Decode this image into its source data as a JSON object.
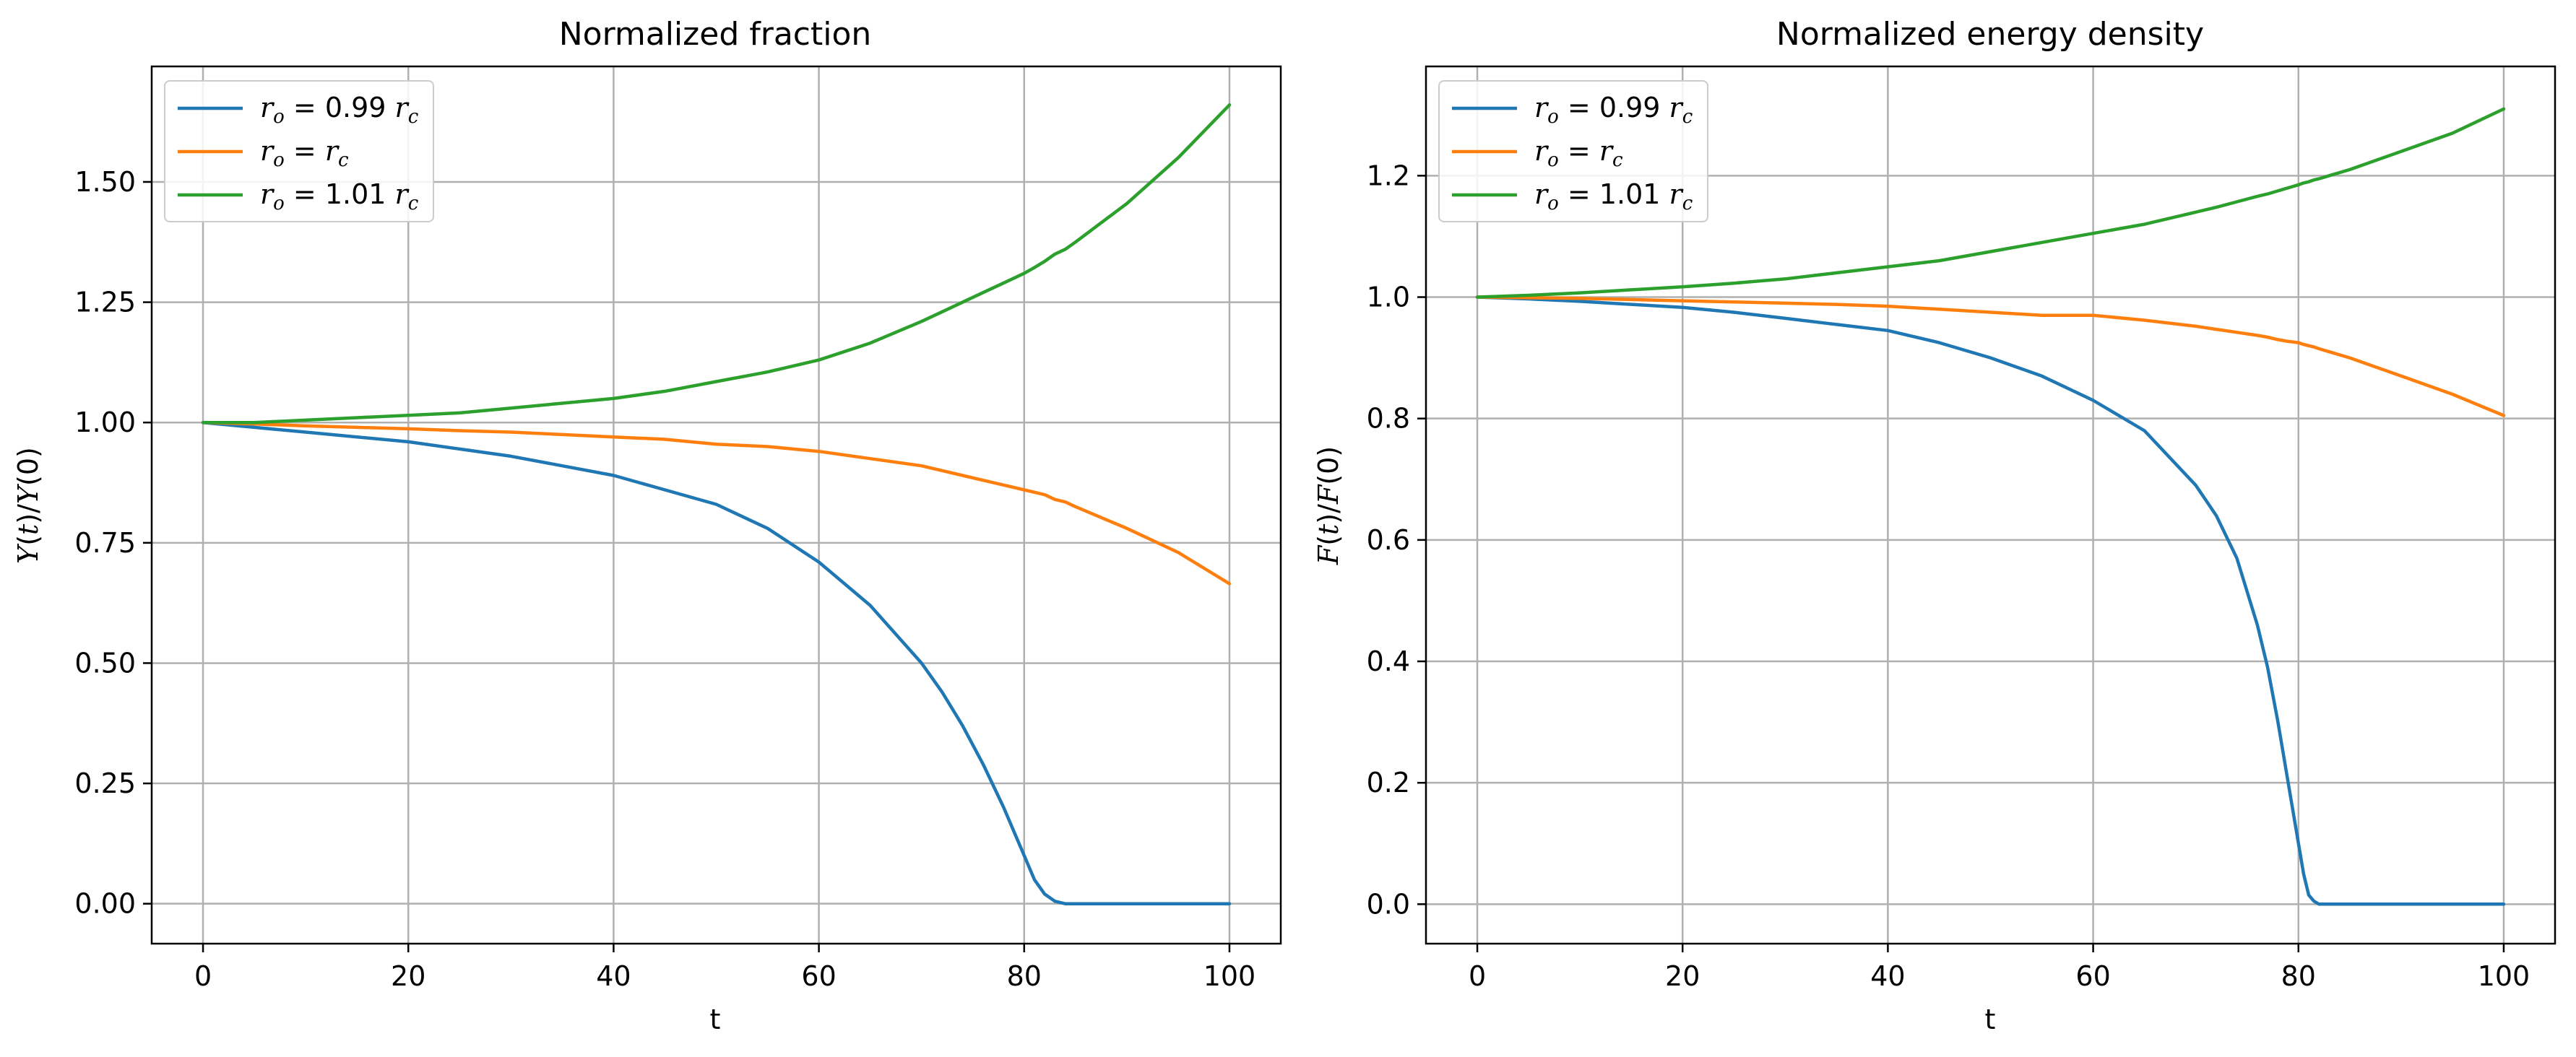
{
  "chart_data": [
    {
      "type": "line",
      "title": "Normalized fraction",
      "xlabel": "t",
      "ylabel": "Y(t)/Y(0)",
      "xlim": [
        -5,
        105
      ],
      "ylim": [
        -0.083,
        1.74
      ],
      "xticks": [
        0,
        20,
        40,
        60,
        80,
        100
      ],
      "xtick_labels": [
        "0",
        "20",
        "40",
        "60",
        "80",
        "100"
      ],
      "yticks": [
        0,
        0.25,
        0.5,
        0.75,
        1.0,
        1.25,
        1.5
      ],
      "ytick_labels": [
        "0.00",
        "0.25",
        "0.50",
        "0.75",
        "1.00",
        "1.25",
        "1.50"
      ],
      "grid": true,
      "legend_position": "top-left",
      "x": [
        0,
        5,
        10,
        15,
        20,
        25,
        30,
        35,
        40,
        45,
        50,
        55,
        60,
        65,
        70,
        72,
        74,
        76,
        78,
        80,
        81,
        82,
        83,
        84,
        85,
        90,
        95,
        100
      ],
      "series": [
        {
          "name": "r_o = 0.99 r_c",
          "color": "#1f77b4",
          "values": [
            1.0,
            0.99,
            0.98,
            0.97,
            0.96,
            0.945,
            0.93,
            0.91,
            0.89,
            0.86,
            0.83,
            0.78,
            0.71,
            0.62,
            0.5,
            0.44,
            0.37,
            0.29,
            0.2,
            0.1,
            0.05,
            0.02,
            0.005,
            0.0,
            0.0,
            0.0,
            0.0,
            0.0
          ]
        },
        {
          "name": "r_o = r_c",
          "color": "#ff7f0e",
          "values": [
            1.0,
            0.997,
            0.993,
            0.99,
            0.987,
            0.983,
            0.98,
            0.975,
            0.97,
            0.965,
            0.955,
            0.95,
            0.94,
            0.925,
            0.91,
            0.9,
            0.89,
            0.88,
            0.87,
            0.86,
            0.855,
            0.85,
            0.84,
            0.835,
            0.825,
            0.78,
            0.73,
            0.665
          ]
        },
        {
          "name": "r_o = 1.01 r_c",
          "color": "#2ca02c",
          "values": [
            1.0,
            1.0,
            1.005,
            1.01,
            1.015,
            1.02,
            1.03,
            1.04,
            1.05,
            1.065,
            1.085,
            1.105,
            1.13,
            1.165,
            1.21,
            1.23,
            1.25,
            1.27,
            1.29,
            1.31,
            1.322,
            1.335,
            1.35,
            1.36,
            1.375,
            1.455,
            1.55,
            1.66
          ]
        }
      ]
    },
    {
      "type": "line",
      "title": "Normalized energy density",
      "xlabel": "t",
      "ylabel": "F(t)/F(0)",
      "xlim": [
        -5,
        105
      ],
      "ylim": [
        -0.065,
        1.38
      ],
      "xticks": [
        0,
        20,
        40,
        60,
        80,
        100
      ],
      "xtick_labels": [
        "0",
        "20",
        "40",
        "60",
        "80",
        "100"
      ],
      "yticks": [
        0,
        0.2,
        0.4,
        0.6,
        0.8,
        1.0,
        1.2
      ],
      "ytick_labels": [
        "0.0",
        "0.2",
        "0.4",
        "0.6",
        "0.8",
        "1.0",
        "1.2"
      ],
      "grid": true,
      "legend_position": "top-left",
      "x": [
        0,
        5,
        10,
        15,
        20,
        25,
        30,
        35,
        40,
        45,
        50,
        55,
        60,
        65,
        70,
        72,
        74,
        76,
        77,
        78,
        79,
        80,
        80.5,
        81,
        81.5,
        82,
        83,
        85,
        90,
        95,
        100
      ],
      "series": [
        {
          "name": "r_o = 0.99 r_c",
          "color": "#1f77b4",
          "values": [
            1.0,
            0.997,
            0.993,
            0.988,
            0.983,
            0.975,
            0.965,
            0.955,
            0.945,
            0.925,
            0.9,
            0.87,
            0.83,
            0.78,
            0.69,
            0.64,
            0.57,
            0.46,
            0.39,
            0.3,
            0.2,
            0.1,
            0.05,
            0.015,
            0.005,
            0.0,
            0.0,
            0.0,
            0.0,
            0.0,
            0.0
          ]
        },
        {
          "name": "r_o = r_c",
          "color": "#ff7f0e",
          "values": [
            1.0,
            0.999,
            0.998,
            0.996,
            0.994,
            0.992,
            0.99,
            0.988,
            0.985,
            0.98,
            0.975,
            0.97,
            0.97,
            0.962,
            0.952,
            0.947,
            0.942,
            0.937,
            0.934,
            0.93,
            0.927,
            0.925,
            0.922,
            0.92,
            0.918,
            0.915,
            0.91,
            0.9,
            0.87,
            0.84,
            0.805
          ]
        },
        {
          "name": "r_o = 1.01 r_c",
          "color": "#2ca02c",
          "values": [
            1.0,
            1.003,
            1.007,
            1.012,
            1.017,
            1.023,
            1.03,
            1.04,
            1.05,
            1.06,
            1.075,
            1.09,
            1.105,
            1.12,
            1.14,
            1.148,
            1.157,
            1.166,
            1.17,
            1.175,
            1.18,
            1.185,
            1.188,
            1.19,
            1.193,
            1.195,
            1.2,
            1.21,
            1.24,
            1.27,
            1.31
          ]
        }
      ]
    }
  ]
}
